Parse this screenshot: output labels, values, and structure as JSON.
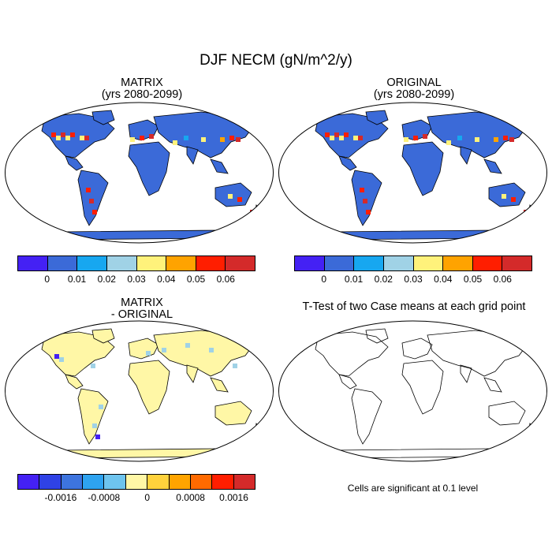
{
  "title": "DJF NECM (gN/m^2/y)",
  "panels": {
    "tl": {
      "line1": "MATRIX",
      "line2": "(yrs 2080-2099)"
    },
    "tr": {
      "line1": "ORIGINAL",
      "line2": "(yrs 2080-2099)"
    },
    "bl": {
      "line1": "MATRIX",
      "line2": "- ORIGINAL"
    },
    "br": {
      "line1": "T-Test of two Case means at each grid point"
    }
  },
  "colorbar_top": {
    "colors": [
      "#4421f4",
      "#3b6ad8",
      "#17a7f0",
      "#a0d2e6",
      "#fff27b",
      "#ffa300",
      "#ff1e00",
      "#d42a2a"
    ],
    "labels": [
      "0",
      "0.01",
      "0.02",
      "0.03",
      "0.04",
      "0.05",
      "0.06"
    ]
  },
  "colorbar_diff": {
    "colors": [
      "#4421f4",
      "#2f42e6",
      "#3d74de",
      "#2ea3f0",
      "#6ec4ee",
      "#fff7a6",
      "#ffd23c",
      "#ffa400",
      "#ff6a00",
      "#ff1e00",
      "#d42a2a"
    ],
    "labels": [
      "-0.0016",
      "-0.0008",
      "0",
      "0.0008",
      "0.0016"
    ]
  },
  "note": "Cells are significant at 0.1 level"
}
